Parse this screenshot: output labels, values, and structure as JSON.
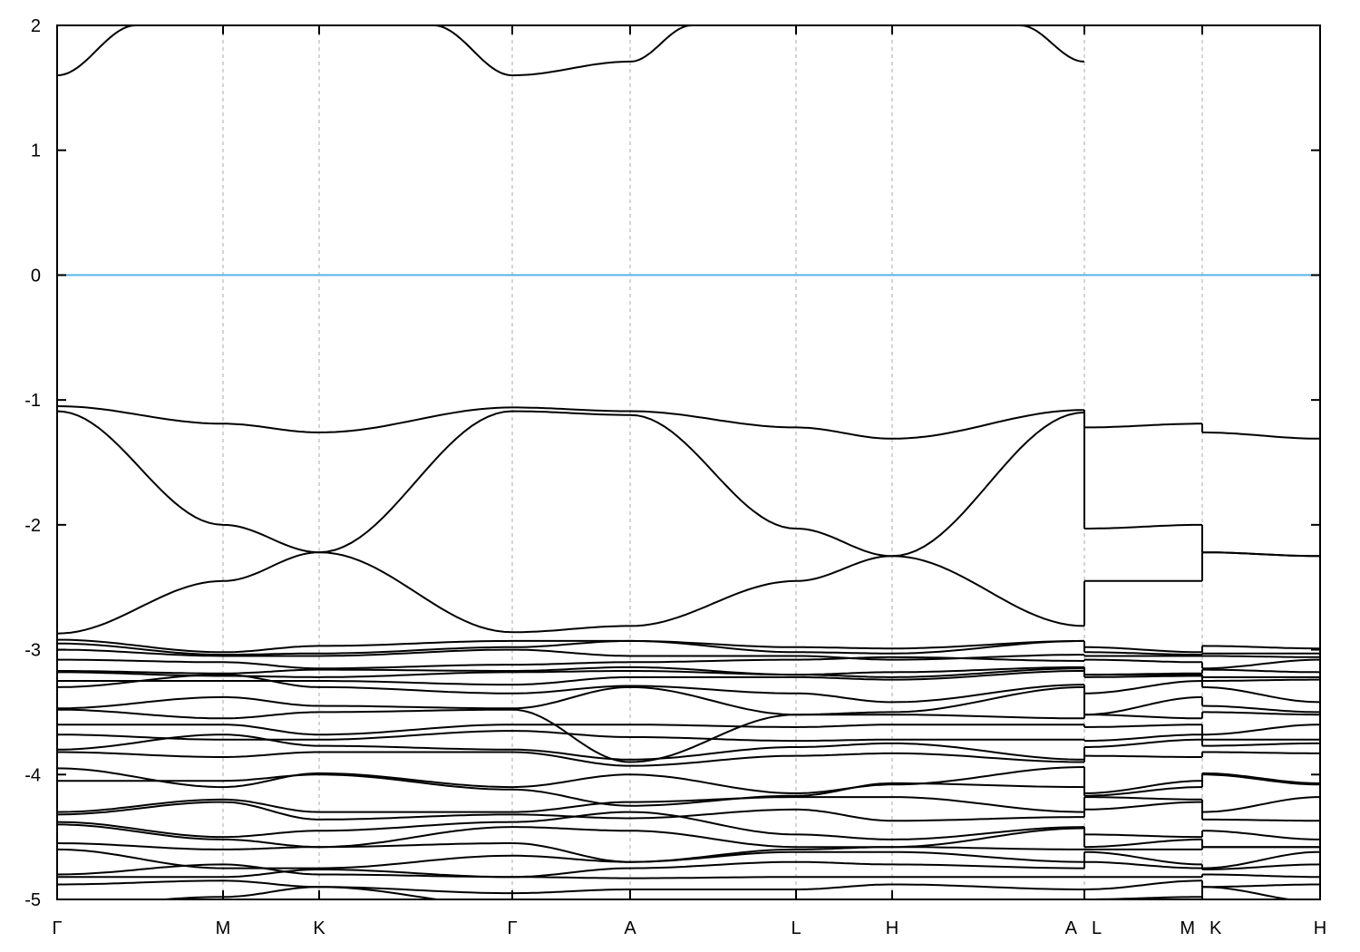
{
  "chart_data": {
    "type": "line",
    "title": "",
    "xlabel": "",
    "ylabel": "",
    "ylim": [
      -5,
      2
    ],
    "yticks": [
      2,
      1,
      0,
      -1,
      -2,
      -3,
      -4,
      -5
    ],
    "grid": "vertical dashed at high-symmetry points",
    "legend": "none",
    "colors": {
      "bands": "#000000",
      "fermi_level": "#56b4e9",
      "grid": "#aaaaaa"
    },
    "fermi_level": 0,
    "k_ticks": [
      {
        "label": "Γ",
        "k": 0
      },
      {
        "label": "M",
        "k": 1.83
      },
      {
        "label": "K",
        "k": 2.89
      },
      {
        "label": "Γ",
        "k": 5.02
      },
      {
        "label": "A",
        "k": 6.32
      },
      {
        "label": "L",
        "k": 8.15
      },
      {
        "label": "H",
        "k": 9.21
      },
      {
        "label": "A",
        "k": 11.33
      },
      {
        "label": "L",
        "k": 11.33
      },
      {
        "label": "M",
        "k": 12.63
      },
      {
        "label": "K",
        "k": 12.63
      },
      {
        "label": "H",
        "k": 13.93
      }
    ],
    "k_range": [
      0,
      13.93
    ],
    "main_path_nodes": [
      "Γ",
      "M",
      "K",
      "Γ",
      "A",
      "L",
      "H",
      "A"
    ],
    "main_path_k": [
      0,
      1.83,
      2.89,
      5.02,
      6.32,
      8.15,
      9.21,
      11.33
    ],
    "conduction_band_segments": [
      [
        [
          0,
          1.6
        ],
        [
          0.87,
          2.0
        ]
      ],
      [
        [
          4.15,
          2.0
        ],
        [
          5.02,
          1.6
        ],
        [
          6.32,
          1.71
        ],
        [
          7.0,
          2.0
        ]
      ],
      [
        [
          10.62,
          2.0
        ],
        [
          11.33,
          1.71
        ]
      ]
    ],
    "valence_bands": [
      [
        -1.05,
        -1.19,
        -1.26,
        -1.06,
        -1.09,
        -1.22,
        -1.31,
        -1.08
      ],
      [
        -1.09,
        -2.0,
        -2.22,
        -2.86,
        -2.81,
        -2.45,
        -2.25,
        -1.1
      ],
      [
        -2.87,
        -2.45,
        -2.22,
        -1.09,
        -1.12,
        -2.03,
        -2.25,
        -2.81
      ],
      [
        -2.92,
        -3.02,
        -2.97,
        -2.93,
        -2.93,
        -2.98,
        -2.99,
        -2.93
      ],
      [
        -2.95,
        -3.04,
        -3.03,
        -2.98,
        -2.93,
        -3.02,
        -3.03,
        -2.93
      ],
      [
        -3.0,
        -3.05,
        -3.05,
        -3.0,
        -3.05,
        -3.05,
        -3.08,
        -3.04
      ],
      [
        -3.08,
        -3.1,
        -3.15,
        -3.12,
        -3.1,
        -3.08,
        -3.06,
        -3.09
      ],
      [
        -3.17,
        -3.19,
        -3.16,
        -3.17,
        -3.14,
        -3.2,
        -3.18,
        -3.14
      ],
      [
        -3.18,
        -3.21,
        -3.22,
        -3.18,
        -3.17,
        -3.2,
        -3.22,
        -3.15
      ],
      [
        -3.25,
        -3.25,
        -3.25,
        -3.28,
        -3.22,
        -3.22,
        -3.24,
        -3.17
      ],
      [
        -3.3,
        -3.2,
        -3.3,
        -3.35,
        -3.29,
        -3.35,
        -3.42,
        -3.28
      ],
      [
        -3.47,
        -3.38,
        -3.45,
        -3.47,
        -3.3,
        -3.52,
        -3.5,
        -3.3
      ],
      [
        -3.48,
        -3.55,
        -3.5,
        -3.48,
        -3.9,
        -3.52,
        -3.52,
        -3.55
      ],
      [
        -3.6,
        -3.6,
        -3.68,
        -3.6,
        -3.6,
        -3.62,
        -3.6,
        -3.6
      ],
      [
        -3.68,
        -3.72,
        -3.72,
        -3.65,
        -3.7,
        -3.73,
        -3.72,
        -3.72
      ],
      [
        -3.8,
        -3.68,
        -3.77,
        -3.8,
        -3.88,
        -3.78,
        -3.75,
        -3.88
      ],
      [
        -3.82,
        -3.86,
        -3.82,
        -3.82,
        -3.93,
        -3.85,
        -3.83,
        -3.9
      ],
      [
        -3.95,
        -4.1,
        -3.99,
        -4.1,
        -4.0,
        -4.15,
        -4.08,
        -3.94
      ],
      [
        -4.05,
        -4.05,
        -4.0,
        -4.12,
        -4.25,
        -4.17,
        -4.07,
        -4.1
      ],
      [
        -4.3,
        -4.2,
        -4.3,
        -4.3,
        -4.22,
        -4.18,
        -4.18,
        -4.3
      ],
      [
        -4.32,
        -4.22,
        -4.36,
        -4.32,
        -4.35,
        -4.28,
        -4.37,
        -4.34
      ],
      [
        -4.38,
        -4.5,
        -4.45,
        -4.38,
        -4.3,
        -4.48,
        -4.52,
        -4.42
      ],
      [
        -4.4,
        -4.52,
        -4.58,
        -4.42,
        -4.45,
        -4.58,
        -4.58,
        -4.43
      ],
      [
        -4.55,
        -4.6,
        -4.58,
        -4.55,
        -4.7,
        -4.6,
        -4.58,
        -4.6
      ],
      [
        -4.6,
        -4.75,
        -4.75,
        -4.65,
        -4.7,
        -4.62,
        -4.62,
        -4.7
      ],
      [
        -4.8,
        -4.72,
        -4.8,
        -4.82,
        -4.75,
        -4.7,
        -4.72,
        -4.75
      ],
      [
        -4.82,
        -4.82,
        -4.76,
        -4.82,
        -4.83,
        -4.82,
        -4.82,
        -4.82
      ],
      [
        -4.88,
        -4.85,
        -4.9,
        -4.95,
        -4.92,
        -4.92,
        -4.88,
        -4.92
      ],
      [
        -5.05,
        -4.98,
        -4.9,
        -5.05,
        -5.0,
        -5.0,
        -5.02,
        -5.05
      ]
    ]
  }
}
